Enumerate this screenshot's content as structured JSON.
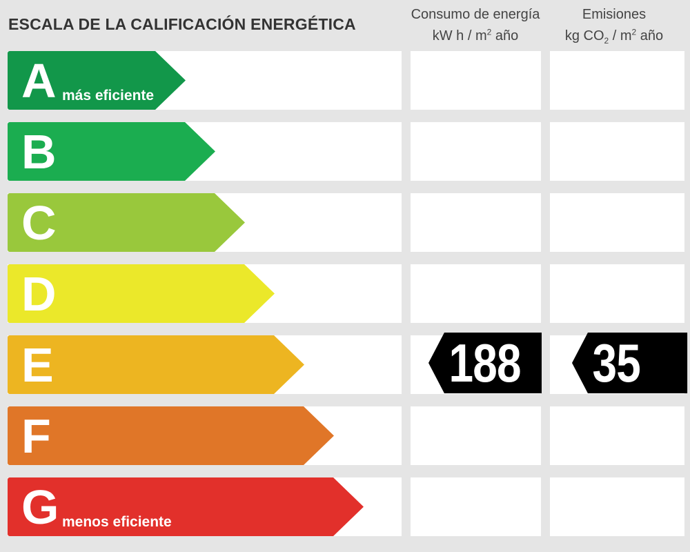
{
  "title": "ESCALA DE LA CALIFICACIÓN ENERGÉTICA",
  "columns": {
    "energy": {
      "line1": "Consumo de energía",
      "unit_a": "kW h  / m",
      "unit_sup": "2",
      "unit_b": " año"
    },
    "emissions": {
      "line1": "Emisiones",
      "unit_a": "kg CO",
      "unit_sub": "2",
      "unit_b": "  / m",
      "unit_sup": "2",
      "unit_c": " año"
    }
  },
  "ratings": [
    {
      "letter": "A",
      "label": "más eficiente",
      "color": "#12974a"
    },
    {
      "letter": "B",
      "label": "",
      "color": "#1bad50"
    },
    {
      "letter": "C",
      "label": "",
      "color": "#99c83c"
    },
    {
      "letter": "D",
      "label": "",
      "color": "#ebe82a"
    },
    {
      "letter": "E",
      "label": "",
      "color": "#edb521"
    },
    {
      "letter": "F",
      "label": "",
      "color": "#e07628"
    },
    {
      "letter": "G",
      "label": "menos eficiente",
      "color": "#e2302b"
    }
  ],
  "current_rating": "E",
  "energy_value": "188",
  "emissions_value": "35"
}
